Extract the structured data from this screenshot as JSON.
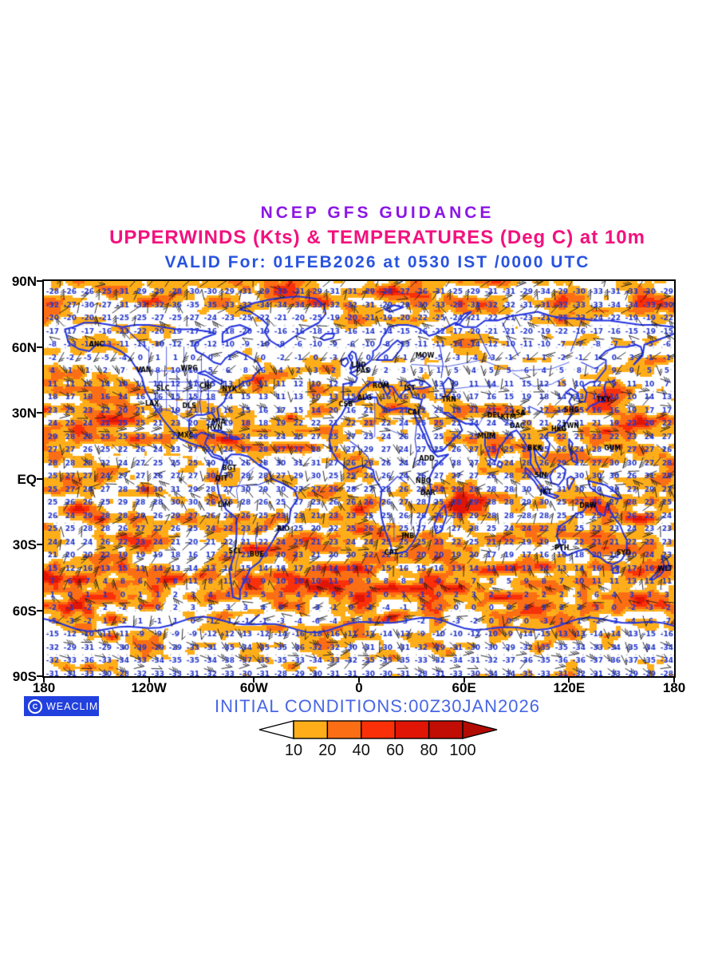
{
  "header": {
    "line1": "NCEP GFS GUIDANCE",
    "line2": "UPPERWINDS (Kts) & TEMPERATURES (Deg C) at 10m",
    "line3": "VALID For: 01FEB2026 at 0530 IST /0000 UTC"
  },
  "footer": {
    "credit": "WEACLIM",
    "copyright_mark": "C",
    "initial_conditions": "INITIAL CONDITIONS:00Z30JAN2026"
  },
  "colorbar": {
    "tick_labels": [
      "10",
      "20",
      "40",
      "60",
      "80",
      "100"
    ],
    "segment_colors": [
      "#FFAE19",
      "#FC6E14",
      "#F93008",
      "#E01505",
      "#C10D04"
    ],
    "underflow_color": "#FFFFFF",
    "overflow_color": "#B20B04"
  },
  "colors": {
    "title": "#8C16E6",
    "subtitle": "#F2117E",
    "valid_line": "#2853E0",
    "initial_conditions": "#4766E4",
    "badge_background": "#2240DD",
    "coastline": "#2433DE",
    "temperature_text": "#2437CE",
    "wind_barb": "#16161F",
    "shading_levels": [
      "#FFAE19",
      "#FC6E14",
      "#F93008",
      "#E01505"
    ]
  },
  "map": {
    "projection": "latlon",
    "lon_range": [
      -180,
      180
    ],
    "lat_range": [
      -90,
      90
    ],
    "y_axis_labels": [
      "90N",
      "60N",
      "30N",
      "EQ",
      "30S",
      "60S",
      "90S"
    ],
    "x_axis_labels": [
      "180",
      "120W",
      "60W",
      "0",
      "60E",
      "120E",
      "180"
    ],
    "temperature_profile_by_latitude": [
      [
        90,
        -28
      ],
      [
        85,
        -30
      ],
      [
        80,
        -34
      ],
      [
        75,
        -24
      ],
      [
        70,
        -21
      ],
      [
        65,
        -16
      ],
      [
        60,
        -8
      ],
      [
        55,
        -1
      ],
      [
        50,
        4
      ],
      [
        45,
        9
      ],
      [
        40,
        13
      ],
      [
        35,
        16
      ],
      [
        30,
        19
      ],
      [
        25,
        22
      ],
      [
        20,
        24
      ],
      [
        15,
        26
      ],
      [
        10,
        27
      ],
      [
        5,
        27
      ],
      [
        0,
        27
      ],
      [
        -5,
        28
      ],
      [
        -10,
        27
      ],
      [
        -15,
        26
      ],
      [
        -20,
        25
      ],
      [
        -25,
        24
      ],
      [
        -30,
        22
      ],
      [
        -35,
        20
      ],
      [
        -40,
        16
      ],
      [
        -45,
        11
      ],
      [
        -50,
        5
      ],
      [
        -55,
        1
      ],
      [
        -60,
        0
      ],
      [
        -65,
        -2
      ],
      [
        -70,
        -8
      ],
      [
        -75,
        -28
      ],
      [
        -80,
        -38
      ],
      [
        -85,
        -33
      ],
      [
        -90,
        -30
      ]
    ],
    "station_labels": [
      {
        "id": "ANC",
        "lon": -150,
        "lat": 61
      },
      {
        "id": "VAN",
        "lon": -123,
        "lat": 49.3
      },
      {
        "id": "WPG",
        "lon": -97,
        "lat": 49.9
      },
      {
        "id": "SLC",
        "lon": -112,
        "lat": 40.8
      },
      {
        "id": "CHI",
        "lon": -87.6,
        "lat": 41.9
      },
      {
        "id": "NYK",
        "lon": -74,
        "lat": 40.7
      },
      {
        "id": "DLS",
        "lon": -97,
        "lat": 32.8
      },
      {
        "id": "LAX",
        "lon": -118.2,
        "lat": 34
      },
      {
        "id": "MIA",
        "lon": -80.2,
        "lat": 25.8
      },
      {
        "id": "MXC",
        "lon": -99.1,
        "lat": 19.4
      },
      {
        "id": "HVN",
        "lon": -82.4,
        "lat": 23.1
      },
      {
        "id": "BGT",
        "lon": -74.1,
        "lat": 4.6
      },
      {
        "id": "QIT",
        "lon": -78.5,
        "lat": -0.2
      },
      {
        "id": "LIM",
        "lon": -77,
        "lat": -12
      },
      {
        "id": "RIO",
        "lon": -43.2,
        "lat": -22.9
      },
      {
        "id": "BUE",
        "lon": -58.4,
        "lat": -34.6
      },
      {
        "id": "SCL",
        "lon": -70.7,
        "lat": -33.4
      },
      {
        "id": "CPT",
        "lon": 18.4,
        "lat": -33.9
      },
      {
        "id": "JNB",
        "lon": 28,
        "lat": -26.2
      },
      {
        "id": "DAR",
        "lon": 39.3,
        "lat": -6.8
      },
      {
        "id": "NBO",
        "lon": 36.8,
        "lat": -1.3
      },
      {
        "id": "ADD",
        "lon": 38.7,
        "lat": 9
      },
      {
        "id": "CAI",
        "lon": 31.2,
        "lat": 30
      },
      {
        "id": "ALG",
        "lon": 3.1,
        "lat": 36.7
      },
      {
        "id": "CSB",
        "lon": -7.6,
        "lat": 33.6
      },
      {
        "id": "LND",
        "lon": -0.1,
        "lat": 51.5
      },
      {
        "id": "PAS",
        "lon": 2.3,
        "lat": 48.8
      },
      {
        "id": "ROM",
        "lon": 12.5,
        "lat": 41.9
      },
      {
        "id": "MOW",
        "lon": 37.6,
        "lat": 55.7
      },
      {
        "id": "IST",
        "lon": 29,
        "lat": 41
      },
      {
        "id": "TRN",
        "lon": 51.4,
        "lat": 35.7
      },
      {
        "id": "DEL",
        "lon": 77.2,
        "lat": 28.6
      },
      {
        "id": "MUM",
        "lon": 72.8,
        "lat": 19
      },
      {
        "id": "KTM",
        "lon": 85.3,
        "lat": 27.7
      },
      {
        "id": "DAC",
        "lon": 90.4,
        "lat": 23.8
      },
      {
        "id": "LSA",
        "lon": 91.1,
        "lat": 29.7
      },
      {
        "id": "BKK",
        "lon": 100.5,
        "lat": 13.7
      },
      {
        "id": "SIN",
        "lon": 103.8,
        "lat": 1.3
      },
      {
        "id": "JKT",
        "lon": 106.8,
        "lat": -6.2
      },
      {
        "id": "HKG",
        "lon": 114.2,
        "lat": 22.3
      },
      {
        "id": "TWN",
        "lon": 121,
        "lat": 23.8
      },
      {
        "id": "SHG",
        "lon": 121.5,
        "lat": 31.2
      },
      {
        "id": "TKY",
        "lon": 139.7,
        "lat": 35.7
      },
      {
        "id": "GUM",
        "lon": 144.8,
        "lat": 13.5
      },
      {
        "id": "DRW",
        "lon": 130.8,
        "lat": -12.4
      },
      {
        "id": "PTH",
        "lon": 115.9,
        "lat": -31.9
      },
      {
        "id": "SYD",
        "lon": 151.2,
        "lat": -33.9
      },
      {
        "id": "WLT",
        "lon": 174.8,
        "lat": -41.3
      }
    ]
  }
}
